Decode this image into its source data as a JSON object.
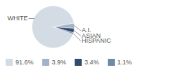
{
  "chart_data": {
    "type": "pie",
    "categories": [
      "WHITE",
      "A.I.",
      "ASIAN",
      "HISPANIC"
    ],
    "values": [
      91.6,
      3.9,
      3.4,
      1.1
    ],
    "value_labels": [
      "91.6%",
      "3.9%",
      "3.4%",
      "1.1%"
    ],
    "colors": [
      "#d3dbe5",
      "#a3b3c6",
      "#2f4c6e",
      "#6f89a6"
    ],
    "legend": "bottom"
  }
}
